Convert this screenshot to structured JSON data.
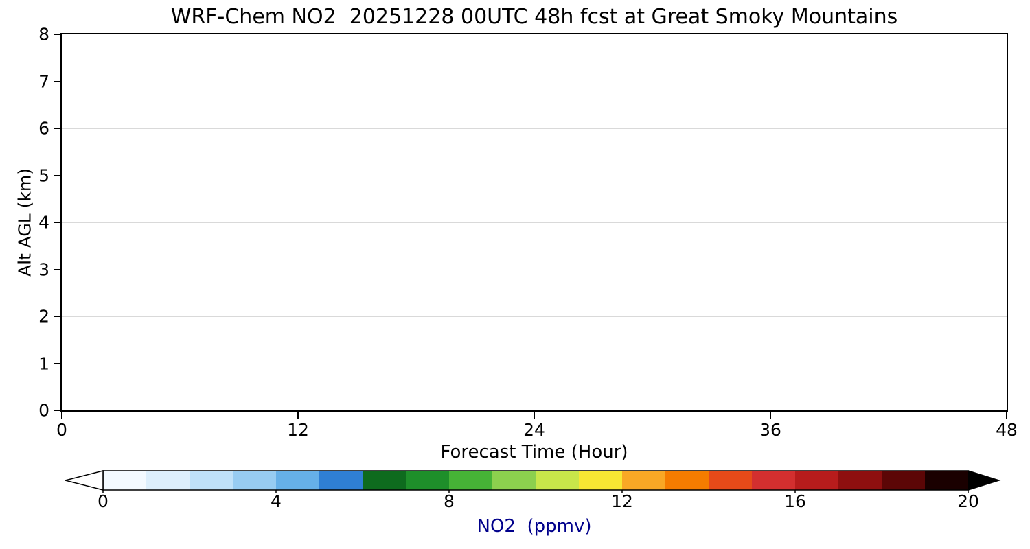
{
  "chart_data": {
    "type": "heatmap",
    "title": "WRF-Chem NO2  20251228 00UTC 48h fcst at Great Smoky Mountains",
    "xlabel": "Forecast Time (Hour)",
    "ylabel": "Alt AGL (km)",
    "xlim": [
      0,
      48
    ],
    "ylim": [
      0,
      8
    ],
    "xticks": [
      0,
      12,
      24,
      36,
      48
    ],
    "yticks": [
      0,
      1,
      2,
      3,
      4,
      5,
      6,
      7,
      8
    ],
    "grid": "horizontal gridlines at each altitude integer",
    "grid_color": "#d9d9d9",
    "field_note": "plot area is blank/white — NO2 values at or below 0 ppmv everywhere (rendered as white)",
    "plot_background": "#ffffff",
    "colorbar": {
      "label": "NO2  (ppmv)",
      "label_color": "#00008b",
      "ticks": [
        0,
        4,
        8,
        12,
        16,
        20
      ],
      "range": [
        0,
        20
      ],
      "orientation": "horizontal",
      "under_color": "#ffffff",
      "over_color": "#000000",
      "outline_color": "#000000",
      "colors": [
        "#f4faff",
        "#ddeffc",
        "#bfe1f9",
        "#97ccf2",
        "#66b0e8",
        "#2f7fd4",
        "#0e6b1e",
        "#1e8f2a",
        "#46b336",
        "#8cd04e",
        "#c8e64a",
        "#f7e733",
        "#f9a825",
        "#f57c00",
        "#e64a19",
        "#d32f2f",
        "#b71c1c",
        "#8e0f0f",
        "#5c0606",
        "#1a0000"
      ]
    }
  }
}
